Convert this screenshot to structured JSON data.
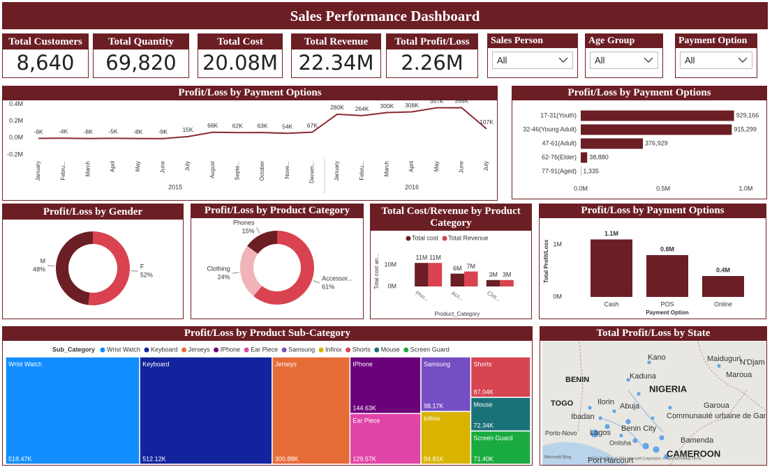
{
  "title": "Sales Performance Dashboard",
  "kpis": [
    {
      "label": "Total Customers",
      "value": "8,640"
    },
    {
      "label": "Total Quantity",
      "value": "69,820"
    },
    {
      "label": "Total Cost",
      "value": "20.08M"
    },
    {
      "label": "Total Revenue",
      "value": "22.34M"
    },
    {
      "label": "Total Profit/Loss",
      "value": "2.26M"
    }
  ],
  "slicers": [
    {
      "label": "Sales Person",
      "selection": "All"
    },
    {
      "label": "Age Group",
      "selection": "All"
    },
    {
      "label": "Payment Option",
      "selection": "All"
    }
  ],
  "chart_data": [
    {
      "type": "line",
      "title": "Profit/Loss by Payment Options",
      "categories": [
        "January",
        "Febru...",
        "March",
        "April",
        "May",
        "June",
        "July",
        "August",
        "Septe...",
        "October",
        "Nove...",
        "Decem...",
        "January",
        "Febru...",
        "March",
        "April",
        "May",
        "June",
        "July"
      ],
      "year_groups": [
        "2015",
        "2016"
      ],
      "values": [
        -6000,
        -4000,
        -8000,
        -5000,
        -8000,
        -9000,
        15000,
        66000,
        62000,
        63000,
        54000,
        67000,
        280000,
        264000,
        300000,
        308000,
        357000,
        358000,
        107000
      ],
      "value_labels": [
        "-6K",
        "-4K",
        "-8K",
        "-5K",
        "-8K",
        "-9K",
        "15K",
        "66K",
        "62K",
        "63K",
        "54K",
        "67K",
        "280K",
        "264K",
        "300K",
        "308K",
        "357K",
        "358K",
        "107K"
      ],
      "color": "#8b2a32",
      "ylim": [
        -250000,
        420000
      ],
      "yticks": [
        {
          "value": 400000,
          "label": "0.4M"
        },
        {
          "value": 200000,
          "label": "0.2M"
        },
        {
          "value": 0,
          "label": "0.0M"
        },
        {
          "value": -200000,
          "label": "-0.2M"
        }
      ],
      "grid": false
    },
    {
      "type": "hbar",
      "title": "Profit/Loss by Payment Options",
      "categories": [
        "17-31(Youth)",
        "32-46(Young Adult)",
        "47-61(Adult)",
        "62-76(Elder)",
        "77-91(Aged)"
      ],
      "values": [
        929166,
        915299,
        376929,
        38880,
        1335
      ],
      "value_labels": [
        "929,166",
        "915,299",
        "376,929",
        "38,880",
        "1,335"
      ],
      "color": "#6b1e24",
      "xlim": [
        0,
        1100000
      ],
      "xticks": [
        {
          "value": 0,
          "label": "0.0M"
        },
        {
          "value": 500000,
          "label": "0.5M"
        },
        {
          "value": 1000000,
          "label": "1.0M"
        }
      ]
    },
    {
      "type": "donut",
      "title": "Profit/Loss by Gender",
      "categories": [
        "F",
        "M"
      ],
      "values": [
        52,
        48
      ],
      "value_labels": [
        "52%",
        "48%"
      ],
      "colors": [
        "#d9434f",
        "#6b1e24"
      ]
    },
    {
      "type": "donut",
      "title": "Profit/Loss by Product Category",
      "categories": [
        "Accessor...",
        "Clothing",
        "Phones"
      ],
      "values": [
        61,
        24,
        15
      ],
      "value_labels": [
        "61%",
        "24%",
        "15%"
      ],
      "colors": [
        "#d9434f",
        "#efb3b8",
        "#6b1e24"
      ]
    },
    {
      "type": "grouped_bar",
      "title": "Total Cost/Revenue by Product Category",
      "categories": [
        "Pho...",
        "Acc...",
        "Clot..."
      ],
      "x_label": "Product_Category",
      "y_label": "Total cost an...",
      "series": [
        {
          "name": "Total cost",
          "color": "#6b1e24",
          "values": [
            11000000,
            6000000,
            3000000
          ],
          "value_labels": [
            "11M",
            "6M",
            "3M"
          ]
        },
        {
          "name": "Total Revenue",
          "color": "#d9434f",
          "values": [
            11000000,
            7000000,
            3000000
          ],
          "value_labels": [
            "11M",
            "7M",
            "3M"
          ]
        }
      ],
      "ylim": [
        0,
        14000000
      ],
      "yticks": [
        {
          "value": 0,
          "label": "0M"
        },
        {
          "value": 10000000,
          "label": "10M"
        }
      ]
    },
    {
      "type": "bar",
      "title": "Profit/Loss by Payment Options",
      "categories": [
        "Cash",
        "POS",
        "Online"
      ],
      "values": [
        1100000,
        800000,
        400000
      ],
      "value_labels": [
        "1.1M",
        "0.8M",
        "0.4M"
      ],
      "color": "#6b1e24",
      "x_label": "Payment Option",
      "y_label": "Total Profit/Loss",
      "ylim": [
        0,
        1300000
      ],
      "yticks": [
        {
          "value": 0,
          "label": "0M"
        },
        {
          "value": 1000000,
          "label": "1M"
        }
      ]
    },
    {
      "type": "treemap",
      "title": "Profit/Loss by Product Sub-Category",
      "legend_title": "Sub_Category",
      "categories": [
        "Wrist Watch",
        "Keyboard",
        "Jerseys",
        "IPhone",
        "Ear Piece",
        "Samsung",
        "Infinix",
        "Shorts",
        "Mouse",
        "Screen Guard"
      ],
      "values": [
        518470,
        512120,
        300880,
        144630,
        129570,
        98170,
        94810,
        87040,
        72340,
        71400
      ],
      "value_labels": [
        "518.47K",
        "512.12K",
        "300.88K",
        "144.63K",
        "129.57K",
        "98.17K",
        "94.81K",
        "87.04K",
        "72.34K",
        "71.40K"
      ],
      "colors": [
        "#118dff",
        "#12239e",
        "#e66c37",
        "#6b007b",
        "#e044a7",
        "#744ec2",
        "#d9b300",
        "#d64550",
        "#197278",
        "#1aab40"
      ]
    }
  ],
  "map": {
    "title": "Total Profit/Loss by State",
    "labels": [
      "BENIN",
      "TOGO",
      "NIGERIA",
      "CAMEROON",
      "Kano",
      "Maiduguri",
      "N'Djam",
      "Kaduna",
      "Maroua",
      "Ilorin",
      "Abuja",
      "Garoua",
      "Ibadan",
      "Lagos",
      "Benin City",
      "Communauté urbaine de Garoua",
      "Porto-Novo",
      "Onitsha",
      "Bamenda",
      "Port Harcourt"
    ],
    "attribution": "Microsoft Bing",
    "copyright": "© 2024 TomTom, © 2024 Microsoft Corporation, © OpenStreetMap Terms"
  }
}
